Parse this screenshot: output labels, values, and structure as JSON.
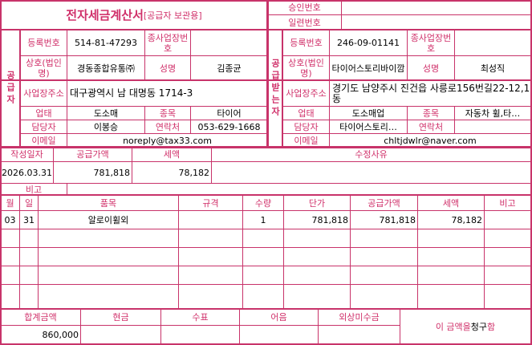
{
  "colors": {
    "border": "#c8336a",
    "label": "#d0306a"
  },
  "header": {
    "title": "전자세금계산서",
    "subtitle": "[공급자 보관용]",
    "approval_label": "승인번호",
    "approval_value": "",
    "serial_label": "일련번호",
    "serial_value": ""
  },
  "supplier": {
    "section_label": "공급자",
    "reg_no_label": "등록번호",
    "reg_no": "514-81-47293",
    "sub_no_label": "종사업장번호",
    "sub_no": "",
    "company_label": "상호(법인명)",
    "company": "경동종합유통㈜",
    "name_label": "성명",
    "name": "김종균",
    "address_label": "사업장주소",
    "address": "대구광역시 남 대명동 1714-3",
    "biz_type_label": "업태",
    "biz_type": "도소매",
    "biz_item_label": "종목",
    "biz_item": "타이어",
    "contact_label": "담당자",
    "contact": "이봉승",
    "phone_label": "연락처",
    "phone": "053-629-1668",
    "email_label": "이메일",
    "email": "noreply@tax33.com"
  },
  "receiver": {
    "section_label": "공급받는자",
    "reg_no_label": "등록번호",
    "reg_no": "246-09-01141",
    "sub_no_label": "종사업장번호",
    "sub_no": "",
    "company_label": "상호(법인명)",
    "company": "타이어스토리바이깜",
    "name_label": "성명",
    "name": "최성직",
    "address_label": "사업장주소",
    "address": "경기도 남양주시 진건읍 사릉로156번길22-12,1동",
    "biz_type_label": "업태",
    "biz_type": "도소매업",
    "biz_item_label": "종목",
    "biz_item": "자동차 휠,타…",
    "contact_label": "담당자",
    "contact": "타이어스토리…",
    "phone_label": "연락처",
    "phone": "",
    "email_label": "이메일",
    "email": "chltjdwlr@naver.com"
  },
  "summary": {
    "date_label": "작성일자",
    "date": "2026.03.31",
    "supply_label": "공급가액",
    "supply": "781,818",
    "tax_label": "세액",
    "tax": "78,182",
    "reason_label": "수정사유",
    "reason": "",
    "note_label": "비고",
    "note": ""
  },
  "items": {
    "headers": [
      "월",
      "일",
      "품목",
      "규격",
      "수량",
      "단가",
      "공급가액",
      "세액",
      "비고"
    ],
    "rows": [
      [
        "03",
        "31",
        "알로이휠외",
        "",
        "1",
        "781,818",
        "781,818",
        "78,182",
        ""
      ],
      [
        "",
        "",
        "",
        "",
        "",
        "",
        "",
        "",
        ""
      ],
      [
        "",
        "",
        "",
        "",
        "",
        "",
        "",
        "",
        ""
      ],
      [
        "",
        "",
        "",
        "",
        "",
        "",
        "",
        "",
        ""
      ],
      [
        "",
        "",
        "",
        "",
        "",
        "",
        "",
        "",
        ""
      ]
    ]
  },
  "footer": {
    "headers": [
      "합계금액",
      "현금",
      "수표",
      "어음",
      "외상미수금"
    ],
    "values": [
      "860,000",
      "",
      "",
      "",
      ""
    ],
    "claim_prefix": "이 금액을 ",
    "claim_word": "청구",
    "claim_suffix": "함"
  }
}
